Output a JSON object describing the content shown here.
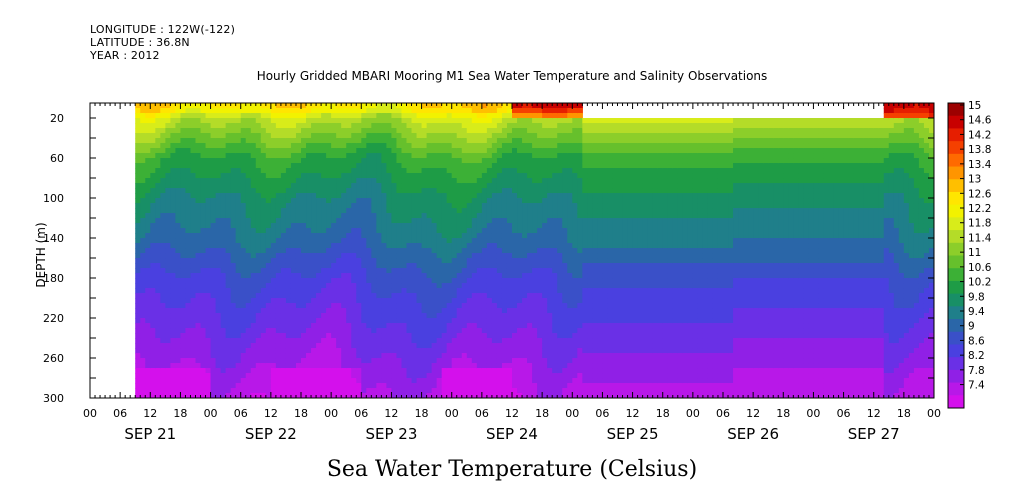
{
  "header": {
    "longitude": "LONGITUDE : 122W(-122)",
    "latitude": "LATITUDE : 36.8N",
    "year": "YEAR : 2012"
  },
  "chart_data": {
    "type": "heatmap",
    "title": "Hourly Gridded MBARI Mooring M1 Sea Water Temperature and Salinity Observations",
    "xlabel": "Sea Water Temperature (Celsius)",
    "ylabel": "DEPTH (m)",
    "x_hour_ticks": [
      "00",
      "06",
      "12",
      "18",
      "00",
      "06",
      "12",
      "18",
      "00",
      "06",
      "12",
      "18",
      "00",
      "06",
      "12",
      "18",
      "00",
      "06",
      "12",
      "18",
      "00",
      "06",
      "12",
      "18",
      "00",
      "06",
      "12",
      "18",
      "00"
    ],
    "x_day_labels": [
      "SEP 21",
      "SEP 22",
      "SEP 23",
      "SEP 24",
      "SEP 25",
      "SEP 26",
      "SEP 27"
    ],
    "y_ticks": [
      20,
      60,
      100,
      140,
      180,
      220,
      260,
      300
    ],
    "ylim": [
      300,
      5
    ],
    "colorbar": {
      "levels": [
        "15",
        "14.6",
        "14.2",
        "13.8",
        "13.4",
        "13",
        "12.6",
        "12.2",
        "11.8",
        "11.4",
        "11",
        "10.6",
        "10.2",
        "9.8",
        "9.4",
        "9",
        "8.6",
        "8.2",
        "7.8",
        "7.4"
      ],
      "colors": [
        "#9c0000",
        "#c80000",
        "#e61e00",
        "#f54000",
        "#ff6a00",
        "#ff9500",
        "#ffbf00",
        "#ffe600",
        "#f2f200",
        "#d8ec1a",
        "#b4dc28",
        "#8cce2a",
        "#66c02c",
        "#3cb036",
        "#1e9c46",
        "#188f66",
        "#1f7f8a",
        "#2a66a8",
        "#3a50c8",
        "#4a40e0",
        "#6a30e6",
        "#9020e6",
        "#b818e8",
        "#d410ec"
      ]
    },
    "depth_profile_typical": {
      "depth_m": [
        10,
        20,
        40,
        60,
        100,
        140,
        180,
        220,
        260,
        300
      ],
      "temperature_c": [
        12.6,
        11.8,
        11.2,
        10.6,
        10.0,
        9.6,
        9.0,
        8.6,
        8.2,
        7.8
      ]
    },
    "missing_data": [
      {
        "period": "before SEP 21 09",
        "depth_range_m": [
          5,
          300
        ]
      },
      {
        "period": "SEP 25 02 to SEP 27 14",
        "depth_range_m": [
          5,
          20
        ]
      }
    ]
  }
}
